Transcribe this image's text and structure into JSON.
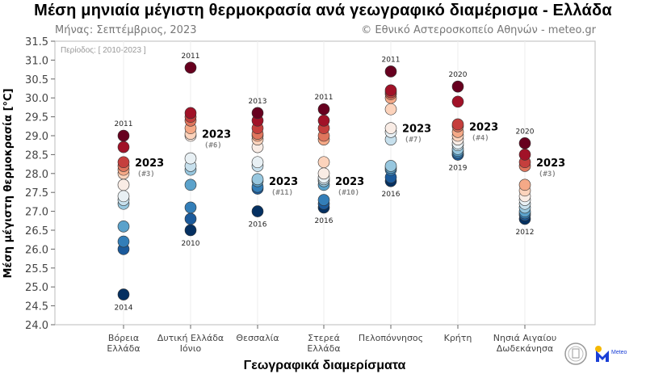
{
  "title": "Μέση μηνιαία μέγιστη θερμοκρασία ανά γεωγραφικό διαμέρισμα - Ελλάδα",
  "subtitle": "Μήνας: Σεπτέμβριος, 2023",
  "credit": "© Εθνικό Αστεροσκοπείο Αθηνών - meteo.gr",
  "period": "Περίοδος: [ 2010-2023 ]",
  "logo_text": "Meteo",
  "chart_data": {
    "type": "scatter",
    "xlabel": "Γεωγραφικά διαμερίσματα",
    "ylabel": "Μέση μέγιστη θερμοκρασία [°C]",
    "ylim": [
      24.0,
      31.5
    ],
    "yticks": [
      "24.0",
      "24.5",
      "25.0",
      "25.5",
      "26.0",
      "26.5",
      "27.0",
      "27.5",
      "28.0",
      "28.5",
      "29.0",
      "29.5",
      "30.0",
      "30.5",
      "31.0",
      "31.5"
    ],
    "grid": "vertical",
    "colormap": "red (warmest) to blue (coolest) by rank",
    "categories": [
      {
        "label": [
          "Βόρεια",
          "Ελλάδα"
        ],
        "values": [
          29.0,
          28.7,
          28.3,
          28.2,
          28.1,
          28.0,
          27.7,
          27.4,
          27.3,
          27.2,
          26.6,
          26.2,
          26.0,
          24.8
        ],
        "max_year": "2011",
        "min_year": "2014",
        "y2023": 28.3,
        "label2023": "2023",
        "rank2023": "(#3)"
      },
      {
        "label": [
          "Δυτική Ελλάδα",
          "Ιόνιο"
        ],
        "values": [
          30.8,
          29.6,
          29.5,
          29.4,
          29.2,
          29.05,
          29.0,
          28.4,
          28.2,
          28.1,
          27.7,
          27.1,
          26.8,
          26.5
        ],
        "max_year": "2011",
        "min_year": "2010",
        "y2023": 29.05,
        "label2023": "2023",
        "rank2023": "(#6)"
      },
      {
        "label": [
          "Θεσσαλία"
        ],
        "values": [
          29.6,
          29.4,
          29.2,
          29.05,
          29.0,
          28.9,
          28.7,
          28.3,
          28.2,
          27.85,
          27.8,
          27.65,
          27.6,
          27.0
        ],
        "max_year": "2013",
        "min_year": "2016",
        "y2023": 27.8,
        "label2023": "2023",
        "rank2023": "(#11)"
      },
      {
        "label": [
          "Στερεά",
          "Ελλάδα"
        ],
        "values": [
          29.7,
          29.4,
          29.2,
          29.0,
          28.9,
          28.3,
          28.0,
          27.9,
          27.85,
          27.8,
          27.7,
          27.3,
          27.2,
          27.1
        ],
        "max_year": "2011",
        "min_year": "2016",
        "y2023": 27.8,
        "label2023": "2023",
        "rank2023": "(#10)"
      },
      {
        "label": [
          "Πελοπόννησος"
        ],
        "values": [
          30.7,
          30.2,
          30.15,
          30.1,
          30.0,
          29.7,
          29.2,
          29.1,
          28.9,
          28.2,
          28.15,
          28.1,
          27.9,
          27.8
        ],
        "max_year": "2011",
        "min_year": "2016",
        "y2023": 29.2,
        "label2023": "2023",
        "rank2023": "(#7)"
      },
      {
        "label": [
          "Κρήτη"
        ],
        "values": [
          30.3,
          29.9,
          29.3,
          29.25,
          29.1,
          29.0,
          28.9,
          28.8,
          28.75,
          28.65,
          28.6,
          28.55,
          28.5,
          28.5
        ],
        "max_year": "2020",
        "min_year": "2019",
        "y2023": 29.25,
        "label2023": "2023",
        "rank2023": "(#4)"
      },
      {
        "label": [
          "Νησιά Αιγαίου",
          "Δωδεκάνησα"
        ],
        "values": [
          28.8,
          28.5,
          28.3,
          28.2,
          27.7,
          27.55,
          27.4,
          27.3,
          27.2,
          27.1,
          27.0,
          26.95,
          26.9,
          26.8
        ],
        "max_year": "2020",
        "min_year": "2012",
        "y2023": 28.3,
        "label2023": "2023",
        "rank2023": "(#3)"
      }
    ]
  }
}
